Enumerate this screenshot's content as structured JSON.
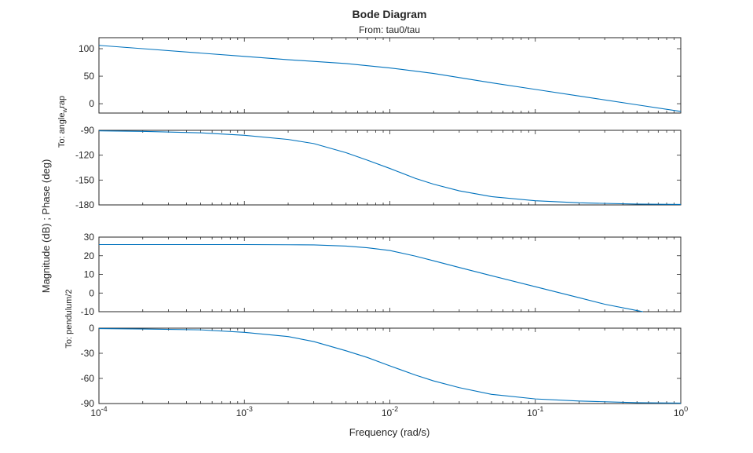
{
  "chart_data": {
    "type": "line",
    "title": "Bode Diagram",
    "subtitle": "From: tau0/tau",
    "xlabel": "Frequency (rad/s)",
    "ylabel": "Magnitude (dB) ; Phase (deg)",
    "x_scale": "log",
    "xlim": [
      0.0001,
      1
    ],
    "x_ticks": [
      0.0001,
      0.001,
      0.01,
      0.1,
      1
    ],
    "x_tick_labels": [
      {
        "base": "10",
        "exp": "-4"
      },
      {
        "base": "10",
        "exp": "-3"
      },
      {
        "base": "10",
        "exp": "-2"
      },
      {
        "base": "10",
        "exp": "-1"
      },
      {
        "base": "10",
        "exp": "0"
      }
    ],
    "grid": false,
    "output_labels": [
      {
        "prefix": "To: angle",
        "sub": "w",
        "suffix": "rap"
      },
      {
        "prefix": "To: pendulum/2",
        "sub": "",
        "suffix": ""
      }
    ],
    "panels": [
      {
        "name": "magnitude-angle",
        "ylim": [
          -17,
          120
        ],
        "yticks": [
          0,
          50,
          100
        ],
        "series": [
          {
            "x": [
              0.0001,
              0.0002,
              0.0005,
              0.001,
              0.002,
              0.005,
              0.01,
              0.02,
              0.05,
              0.1,
              0.2,
              0.5,
              1
            ],
            "y": [
              106,
              100,
              92,
              86,
              80,
              73,
              65,
              55,
              38,
              26,
              14,
              -2,
              -14
            ]
          }
        ]
      },
      {
        "name": "phase-angle",
        "ylim": [
          -180,
          -90
        ],
        "yticks": [
          -180,
          -150,
          -120,
          -90
        ],
        "series": [
          {
            "x": [
              0.0001,
              0.0002,
              0.0005,
              0.001,
              0.002,
              0.003,
              0.005,
              0.007,
              0.01,
              0.015,
              0.02,
              0.03,
              0.05,
              0.1,
              0.2,
              0.5,
              1
            ],
            "y": [
              -90.6,
              -91.2,
              -93,
              -96,
              -101,
              -106,
              -117,
              -126,
              -136,
              -148,
              -155,
              -163,
              -170,
              -175,
              -177.5,
              -179,
              -179.5
            ]
          }
        ]
      },
      {
        "name": "magnitude-pendulum",
        "ylim": [
          -10,
          30
        ],
        "yticks": [
          -10,
          0,
          10,
          20,
          30
        ],
        "series": [
          {
            "x": [
              0.0001,
              0.0002,
              0.0005,
              0.001,
              0.002,
              0.003,
              0.005,
              0.007,
              0.01,
              0.015,
              0.02,
              0.03,
              0.05,
              0.1,
              0.2,
              0.3,
              0.5,
              0.55
            ],
            "y": [
              26,
              26,
              26,
              26,
              25.9,
              25.8,
              25.2,
              24.3,
              22.8,
              19.8,
              17.3,
              13.7,
              9.3,
              3.4,
              -2.5,
              -6,
              -9.4,
              -10
            ]
          }
        ]
      },
      {
        "name": "phase-pendulum",
        "ylim": [
          -90,
          0
        ],
        "yticks": [
          -90,
          -60,
          -30,
          0
        ],
        "series": [
          {
            "x": [
              0.0001,
              0.0002,
              0.0005,
              0.001,
              0.002,
              0.003,
              0.005,
              0.007,
              0.01,
              0.015,
              0.02,
              0.03,
              0.05,
              0.1,
              0.2,
              0.5,
              1
            ],
            "y": [
              -0.5,
              -1,
              -2,
              -5,
              -10,
              -16,
              -27,
              -35,
              -45,
              -56,
              -63,
              -71,
              -79,
              -84.5,
              -87,
              -89,
              -89.5
            ]
          }
        ]
      }
    ]
  }
}
